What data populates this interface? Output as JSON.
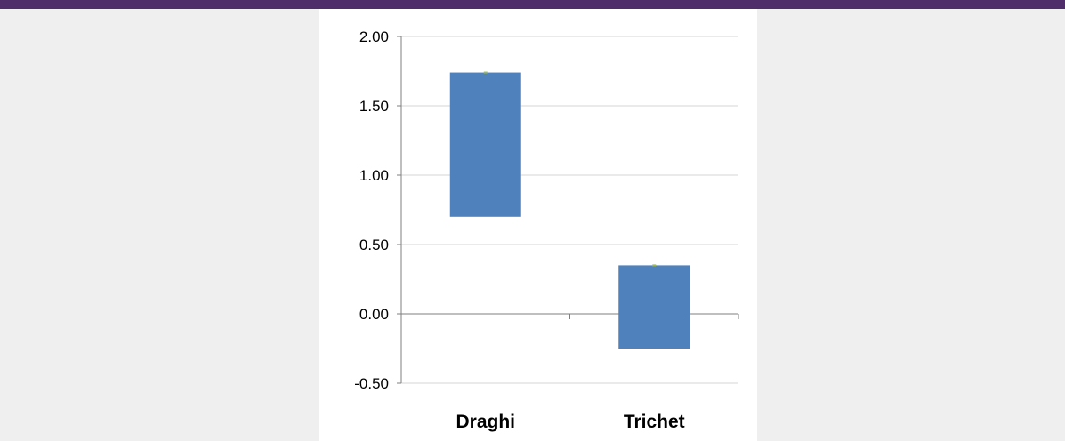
{
  "header": {
    "title": ""
  },
  "colors": {
    "title_bar": "#4f2d6b",
    "panel_bg": "#efefef",
    "bar": "#4f81bd",
    "marker": "#9bbb59",
    "gridline": "#c8c8c8"
  },
  "chart_data": {
    "type": "bar",
    "subtype": "floating",
    "title": "",
    "xlabel": "",
    "ylabel": "",
    "ylim": [
      -0.5,
      2.0
    ],
    "yticks": [
      -0.5,
      0.0,
      0.5,
      1.0,
      1.5,
      2.0
    ],
    "ytick_labels": [
      "-0.50",
      "0.00",
      "0.50",
      "1.00",
      "1.50",
      "2.00"
    ],
    "categories": [
      "Draghi",
      "Trichet"
    ],
    "series": [
      {
        "low": [
          0.7,
          -0.25
        ],
        "high": [
          1.74,
          0.35
        ]
      }
    ],
    "markers": [
      1.74,
      0.35
    ],
    "grid": true,
    "legend": "none"
  }
}
